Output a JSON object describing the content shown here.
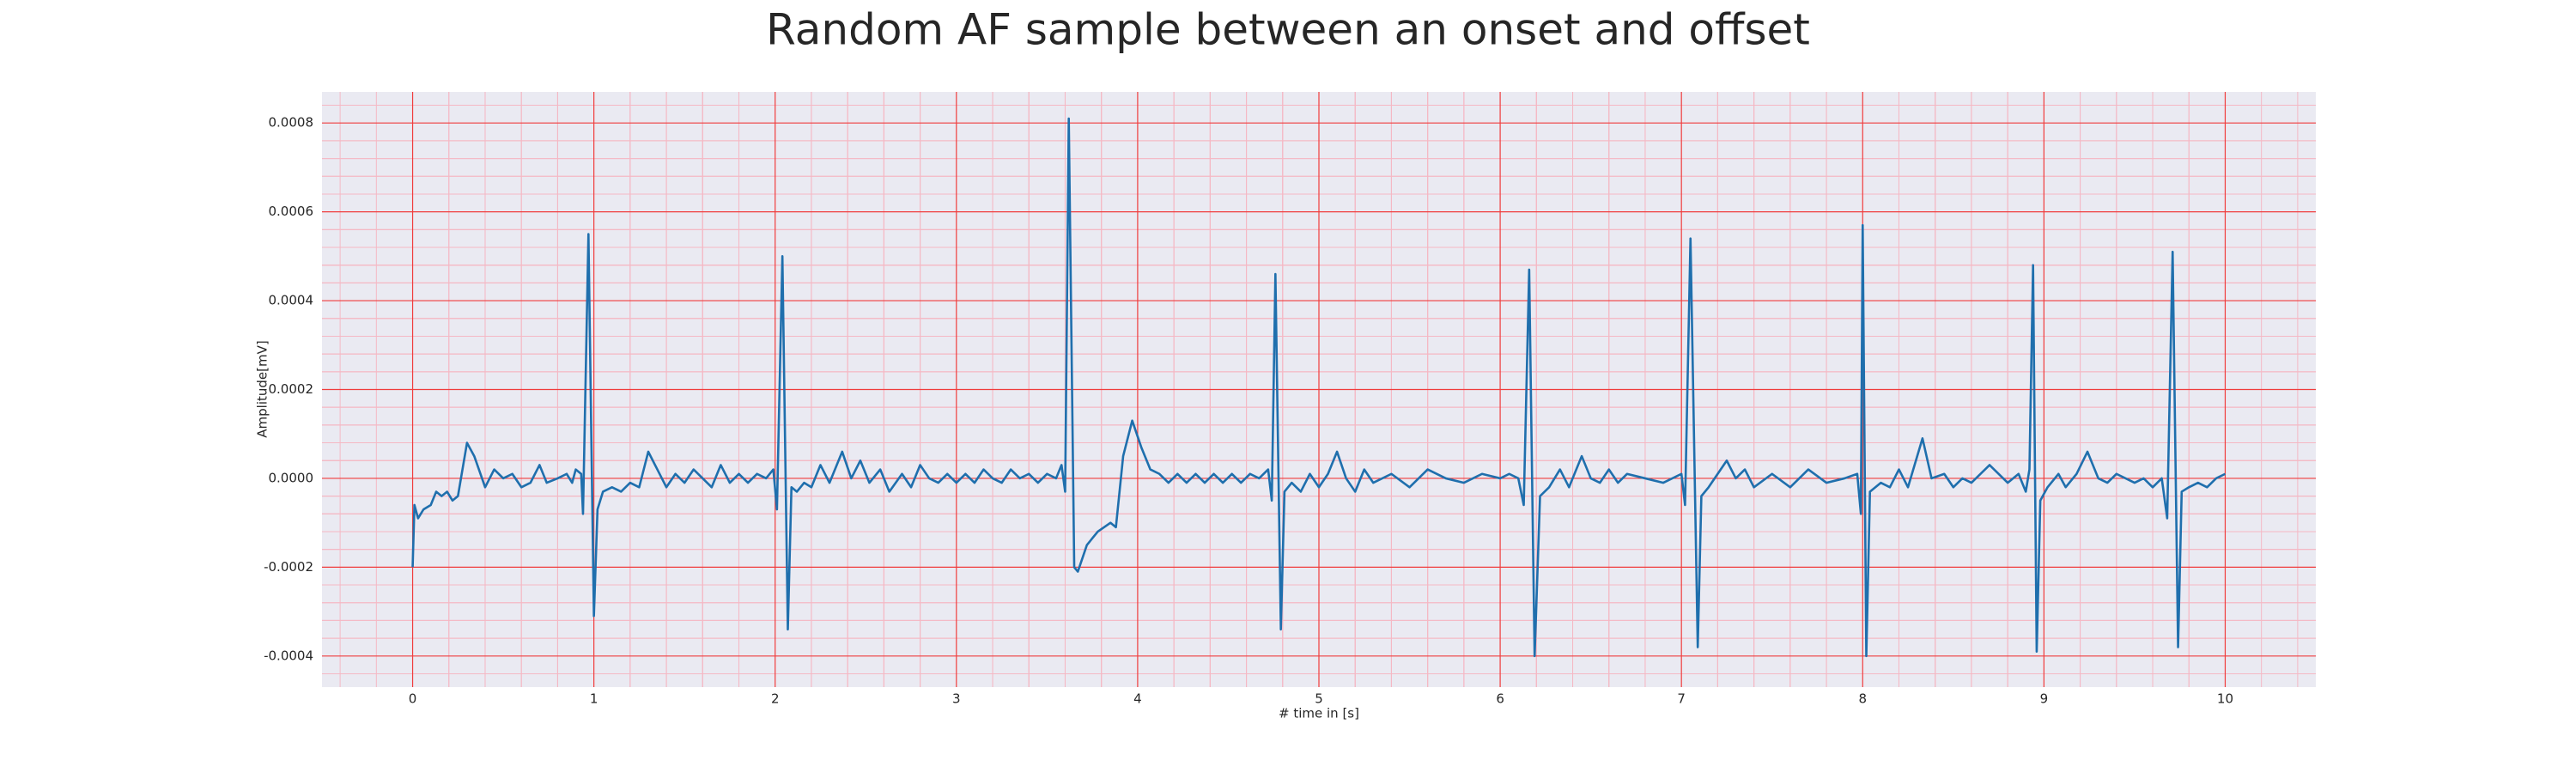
{
  "chart_data": {
    "type": "line",
    "title": "Random AF sample between an onset and offset",
    "xlabel": "# time in [s]",
    "ylabel": "Amplitude[mV]",
    "xlim": [
      -0.5,
      10.5
    ],
    "ylim": [
      -0.00047,
      0.00087
    ],
    "xticks": [
      0,
      1,
      2,
      3,
      4,
      5,
      6,
      7,
      8,
      9,
      10
    ],
    "yticks": [
      -0.0004,
      -0.0002,
      {
        "value": 0,
        "label": "0.0000"
      },
      0.0002,
      0.0004,
      0.0006,
      0.0008
    ],
    "grid": true,
    "grid_color": "#f03c3c",
    "minor_grid_color": "#f5b8c4",
    "background": "#eaeaf2",
    "series": [
      {
        "color": "#1f6fad",
        "x": [
          0,
          0.01,
          0.03,
          0.06,
          0.1,
          0.13,
          0.16,
          0.19,
          0.22,
          0.25,
          0.3,
          0.34,
          0.4,
          0.45,
          0.5,
          0.55,
          0.6,
          0.65,
          0.7,
          0.74,
          0.8,
          0.85,
          0.88,
          0.9,
          0.93,
          0.94,
          0.97,
          1.0,
          1.02,
          1.05,
          1.1,
          1.15,
          1.2,
          1.25,
          1.3,
          1.35,
          1.4,
          1.45,
          1.5,
          1.55,
          1.6,
          1.65,
          1.7,
          1.75,
          1.8,
          1.85,
          1.9,
          1.95,
          1.99,
          2.01,
          2.04,
          2.07,
          2.09,
          2.12,
          2.16,
          2.2,
          2.25,
          2.3,
          2.37,
          2.42,
          2.47,
          2.52,
          2.58,
          2.63,
          2.7,
          2.75,
          2.8,
          2.85,
          2.9,
          2.95,
          3.0,
          3.05,
          3.1,
          3.15,
          3.2,
          3.25,
          3.3,
          3.35,
          3.4,
          3.45,
          3.5,
          3.55,
          3.58,
          3.6,
          3.62,
          3.65,
          3.67,
          3.72,
          3.78,
          3.85,
          3.88,
          3.92,
          3.97,
          4.02,
          4.07,
          4.12,
          4.17,
          4.22,
          4.27,
          4.32,
          4.37,
          4.42,
          4.47,
          4.52,
          4.57,
          4.62,
          4.67,
          4.72,
          4.74,
          4.76,
          4.79,
          4.81,
          4.85,
          4.9,
          4.95,
          5.0,
          5.05,
          5.1,
          5.15,
          5.2,
          5.25,
          5.3,
          5.4,
          5.5,
          5.6,
          5.7,
          5.8,
          5.9,
          6.0,
          6.05,
          6.1,
          6.13,
          6.16,
          6.19,
          6.22,
          6.27,
          6.33,
          6.38,
          6.45,
          6.5,
          6.55,
          6.6,
          6.65,
          6.7,
          6.8,
          6.9,
          7.0,
          7.02,
          7.05,
          7.09,
          7.11,
          7.15,
          7.2,
          7.25,
          7.3,
          7.35,
          7.4,
          7.5,
          7.6,
          7.7,
          7.8,
          7.9,
          7.97,
          7.99,
          8.0,
          8.02,
          8.04,
          8.1,
          8.15,
          8.2,
          8.25,
          8.33,
          8.38,
          8.45,
          8.5,
          8.55,
          8.6,
          8.7,
          8.8,
          8.86,
          8.9,
          8.92,
          8.94,
          8.96,
          8.98,
          9.02,
          9.08,
          9.12,
          9.18,
          9.24,
          9.3,
          9.35,
          9.4,
          9.5,
          9.55,
          9.6,
          9.65,
          9.68,
          9.71,
          9.74,
          9.76,
          9.8,
          9.85,
          9.9,
          9.95,
          10.0
        ],
        "values": [
          -0.0002,
          -6e-05,
          -9e-05,
          -7e-05,
          -6e-05,
          -3e-05,
          -4e-05,
          -3e-05,
          -5e-05,
          -4e-05,
          8e-05,
          5e-05,
          -2e-05,
          2e-05,
          0,
          1e-05,
          -2e-05,
          -1e-05,
          3e-05,
          -1e-05,
          0,
          1e-05,
          -1e-05,
          2e-05,
          1e-05,
          -8e-05,
          0.00055,
          -0.00031,
          -7e-05,
          -3e-05,
          -2e-05,
          -3e-05,
          -1e-05,
          -2e-05,
          6e-05,
          2e-05,
          -2e-05,
          1e-05,
          -1e-05,
          2e-05,
          0,
          -2e-05,
          3e-05,
          -1e-05,
          1e-05,
          -1e-05,
          1e-05,
          0,
          2e-05,
          -7e-05,
          0.0005,
          -0.00034,
          -2e-05,
          -3e-05,
          -1e-05,
          -2e-05,
          3e-05,
          -1e-05,
          6e-05,
          0,
          4e-05,
          -1e-05,
          2e-05,
          -3e-05,
          1e-05,
          -2e-05,
          3e-05,
          0,
          -1e-05,
          1e-05,
          -1e-05,
          1e-05,
          -1e-05,
          2e-05,
          0,
          -1e-05,
          2e-05,
          0,
          1e-05,
          -1e-05,
          1e-05,
          0,
          3e-05,
          -3e-05,
          0.00081,
          -0.0002,
          -0.00021,
          -0.00015,
          -0.00012,
          -0.0001,
          -0.00011,
          5e-05,
          0.00013,
          7e-05,
          2e-05,
          1e-05,
          -1e-05,
          1e-05,
          -1e-05,
          1e-05,
          -1e-05,
          1e-05,
          -1e-05,
          1e-05,
          -1e-05,
          1e-05,
          0,
          2e-05,
          -5e-05,
          0.00046,
          -0.00034,
          -3e-05,
          -1e-05,
          -3e-05,
          1e-05,
          -2e-05,
          1e-05,
          6e-05,
          0,
          -3e-05,
          2e-05,
          -1e-05,
          1e-05,
          -2e-05,
          2e-05,
          0,
          -1e-05,
          1e-05,
          0,
          1e-05,
          0,
          -6e-05,
          0.00047,
          -0.0004,
          -4e-05,
          -2e-05,
          2e-05,
          -2e-05,
          5e-05,
          0,
          -1e-05,
          2e-05,
          -1e-05,
          1e-05,
          0,
          -1e-05,
          1e-05,
          -6e-05,
          0.00054,
          -0.00038,
          -4e-05,
          -2e-05,
          1e-05,
          4e-05,
          0,
          2e-05,
          -2e-05,
          1e-05,
          -2e-05,
          2e-05,
          -1e-05,
          0,
          1e-05,
          -8e-05,
          0.00057,
          -0.0004,
          -3e-05,
          -1e-05,
          -2e-05,
          2e-05,
          -2e-05,
          9e-05,
          0,
          1e-05,
          -2e-05,
          0,
          -1e-05,
          3e-05,
          -1e-05,
          1e-05,
          -3e-05,
          2e-05,
          0.00048,
          -0.00039,
          -5e-05,
          -2e-05,
          1e-05,
          -2e-05,
          1e-05,
          6e-05,
          0,
          -1e-05,
          1e-05,
          -1e-05,
          0,
          -2e-05,
          0,
          -9e-05,
          0.00051,
          -0.00038,
          -3e-05,
          -2e-05,
          -1e-05,
          -2e-05,
          0,
          1e-05
        ]
      }
    ]
  }
}
